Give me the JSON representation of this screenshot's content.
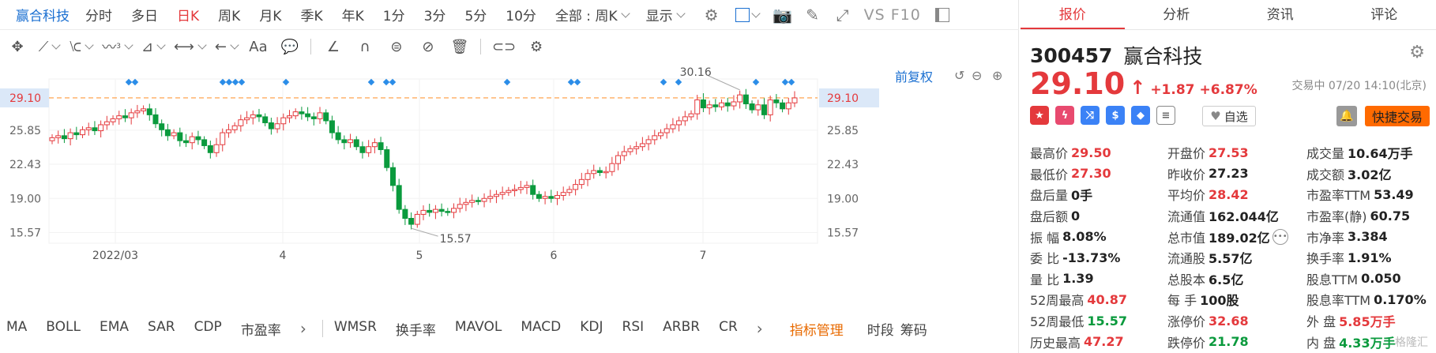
{
  "period_bar": {
    "stock_name": "赢合科技",
    "periods": [
      "分时",
      "多日",
      "日K",
      "周K",
      "月K",
      "季K",
      "年K",
      "1分",
      "3分",
      "5分",
      "10分"
    ],
    "active_period": "日K",
    "range_select": "全部 : 周K",
    "display_label": "显示",
    "vs_label": "VS F10"
  },
  "draw_bar": {
    "text_tool": "Aa"
  },
  "chart": {
    "restore_label": "前复权",
    "current_price_label": "29.10",
    "high_annotation": "30.16",
    "low_annotation": "15.57",
    "y_ticks": [
      "29.10",
      "25.85",
      "22.43",
      "19.00",
      "15.57"
    ],
    "x_ticks": [
      "2022/03",
      "4",
      "5",
      "6",
      "7"
    ]
  },
  "chart_data": {
    "type": "candlestick",
    "title": "",
    "xlabel": "",
    "ylabel": "",
    "ylim": [
      15.57,
      29.1
    ],
    "y_ticks": [
      29.1,
      25.85,
      22.43,
      19.0,
      15.57
    ],
    "x_ticks": [
      "2022/03",
      "4",
      "5",
      "6",
      "7"
    ],
    "reference_line": 29.1,
    "annotations": [
      {
        "text": "30.16",
        "value": 30.16
      },
      {
        "text": "15.57",
        "value": 15.57
      }
    ],
    "closes": [
      25.1,
      25.3,
      25.0,
      25.6,
      25.4,
      25.9,
      26.1,
      25.8,
      26.4,
      26.7,
      27.0,
      27.3,
      27.1,
      27.6,
      27.8,
      28.0,
      27.4,
      26.5,
      25.9,
      25.3,
      25.6,
      24.8,
      24.6,
      25.2,
      24.9,
      24.3,
      23.6,
      24.4,
      25.6,
      25.9,
      26.3,
      26.9,
      27.1,
      27.4,
      27.2,
      26.6,
      26.0,
      26.5,
      27.1,
      27.3,
      27.7,
      27.5,
      27.2,
      27.0,
      27.6,
      26.8,
      25.6,
      24.9,
      24.6,
      24.9,
      24.2,
      23.6,
      24.2,
      24.6,
      23.9,
      22.1,
      20.3,
      17.9,
      17.0,
      16.4,
      17.4,
      17.8,
      17.6,
      17.9,
      17.7,
      17.6,
      18.0,
      18.4,
      18.6,
      18.8,
      18.7,
      19.0,
      19.2,
      19.4,
      19.6,
      19.8,
      19.9,
      20.1,
      20.3,
      19.4,
      19.0,
      19.2,
      19.0,
      19.3,
      19.6,
      19.9,
      20.4,
      20.9,
      21.5,
      21.8,
      21.6,
      21.7,
      22.5,
      23.3,
      23.7,
      24.0,
      24.2,
      24.5,
      24.9,
      25.3,
      25.6,
      26.0,
      26.4,
      26.8,
      27.2,
      27.5,
      28.9,
      28.1,
      28.4,
      28.2,
      28.6,
      28.3,
      28.7,
      29.4,
      28.5,
      27.9,
      28.4,
      27.4,
      28.9,
      28.6,
      28.0,
      28.6,
      29.1
    ]
  },
  "indicators": {
    "items_a": [
      "MA",
      "BOLL",
      "EMA",
      "SAR",
      "CDP",
      "市盈率"
    ],
    "items_b": [
      "WMSR",
      "换手率",
      "MAVOL",
      "MACD",
      "KDJ",
      "RSI",
      "ARBR",
      "CR"
    ],
    "manage_label": "指标管理",
    "tail_items": [
      "时段",
      "筹码"
    ]
  },
  "right": {
    "tabs": [
      "报价",
      "分析",
      "资讯",
      "评论"
    ],
    "active_tab": "报价",
    "code": "300457",
    "name": "赢合科技",
    "price": "29.10",
    "change": "+1.87",
    "change_pct": "+6.87%",
    "status": "交易中 07/20 14:10(北京)",
    "watchlist_label": "自选",
    "fast_trade_label": "快捷交易",
    "quote_rows": [
      [
        {
          "l": "最高价",
          "v": "29.50",
          "c": "r"
        },
        {
          "l": "开盘价",
          "v": "27.53",
          "c": "r"
        },
        {
          "l": "成交量",
          "v": "10.64万手",
          "c": ""
        }
      ],
      [
        {
          "l": "最低价",
          "v": "27.30",
          "c": "r"
        },
        {
          "l": "昨收价",
          "v": "27.23",
          "c": ""
        },
        {
          "l": "成交额",
          "v": "3.02亿",
          "c": ""
        }
      ],
      [
        {
          "l": "盘后量",
          "v": "0手",
          "c": ""
        },
        {
          "l": "平均价",
          "v": "28.42",
          "c": "r"
        },
        {
          "l": "市盈率TTM",
          "v": "53.49",
          "c": ""
        }
      ],
      [
        {
          "l": "盘后额",
          "v": "0",
          "c": ""
        },
        {
          "l": "流通值",
          "v": "162.044亿",
          "c": ""
        },
        {
          "l": "市盈率(静)",
          "v": "60.75",
          "c": ""
        }
      ],
      [
        {
          "l": "振  幅",
          "v": "8.08%",
          "c": ""
        },
        {
          "l": "总市值",
          "v": "189.02亿",
          "c": ""
        },
        {
          "l": "市净率",
          "v": "3.384",
          "c": ""
        }
      ],
      [
        {
          "l": "委  比",
          "v": "-13.73%",
          "c": ""
        },
        {
          "l": "流通股",
          "v": "5.57亿",
          "c": ""
        },
        {
          "l": "换手率",
          "v": "1.91%",
          "c": ""
        }
      ],
      [
        {
          "l": "量  比",
          "v": "1.39",
          "c": ""
        },
        {
          "l": "总股本",
          "v": "6.5亿",
          "c": ""
        },
        {
          "l": "股息TTM",
          "v": "0.050",
          "c": ""
        }
      ],
      [
        {
          "l": "52周最高",
          "v": "40.87",
          "c": "r"
        },
        {
          "l": "每  手",
          "v": "100股",
          "c": ""
        },
        {
          "l": "股息率TTM",
          "v": "0.170%",
          "c": ""
        }
      ],
      [
        {
          "l": "52周最低",
          "v": "15.57",
          "c": "g"
        },
        {
          "l": "涨停价",
          "v": "32.68",
          "c": "r"
        },
        {
          "l": "外  盘",
          "v": "5.85万手",
          "c": "r"
        }
      ],
      [
        {
          "l": "历史最高",
          "v": "47.27",
          "c": "r"
        },
        {
          "l": "跌停价",
          "v": "21.78",
          "c": "g"
        },
        {
          "l": "内  盘",
          "v": "4.33万手",
          "c": "g"
        }
      ]
    ],
    "watermark": "格隆汇"
  },
  "colors": {
    "up": "#e4393c",
    "down": "#0a9a3d",
    "accent": "#1a6fd1",
    "orange": "#ff6a00"
  }
}
